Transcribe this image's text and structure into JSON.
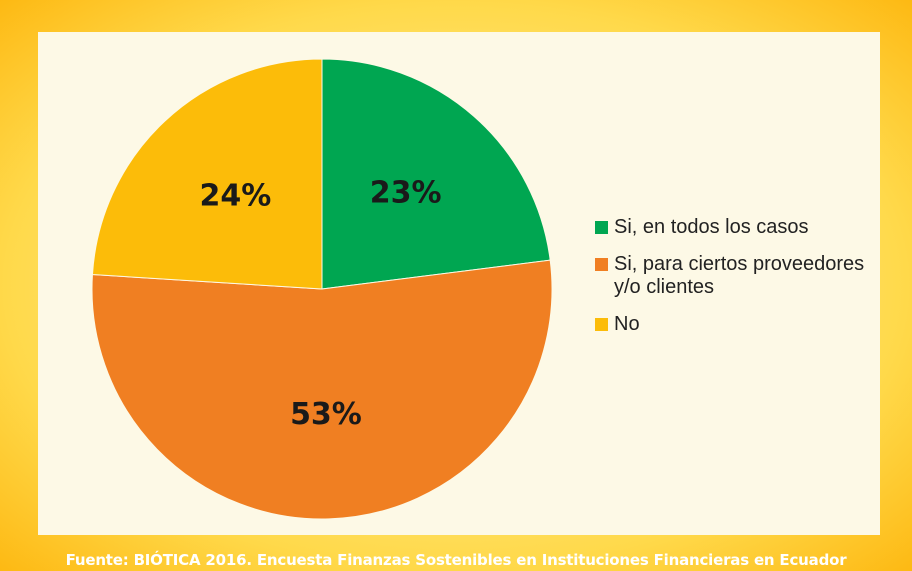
{
  "chart_data": {
    "type": "pie",
    "categories": [
      "Si, en todos los casos",
      "Si, para ciertos proveedores y/o clientes",
      "No"
    ],
    "values": [
      23,
      53,
      24
    ],
    "value_labels": [
      "23%",
      "53%",
      "24%"
    ],
    "colors": [
      "#00a651",
      "#f07f22",
      "#fcbc09"
    ],
    "legend": "right",
    "source": "Fuente: BIÓTICA 2016. Encuesta Finanzas Sostenibles en Instituciones Financieras en Ecuador"
  }
}
